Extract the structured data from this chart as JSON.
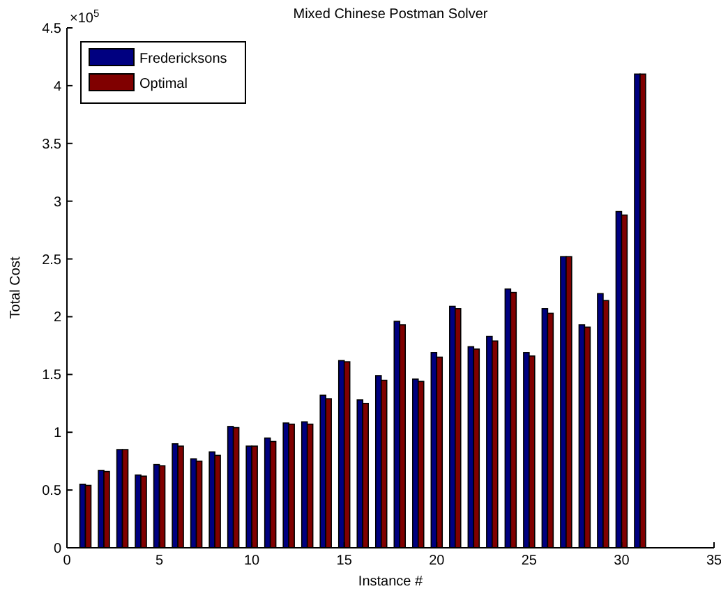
{
  "chart_data": {
    "type": "bar",
    "title": "Mixed Chinese Postman Solver",
    "xlabel": "Instance #",
    "ylabel": "Total Cost",
    "annotations": [
      "×10$^{5}$"
    ],
    "x": [
      1,
      2,
      3,
      4,
      5,
      6,
      7,
      8,
      9,
      10,
      11,
      12,
      13,
      14,
      15,
      16,
      17,
      18,
      19,
      20,
      21,
      22,
      23,
      24,
      25,
      26,
      27,
      28,
      29,
      30,
      31
    ],
    "series": [
      {
        "name": "Fredericksons",
        "color": "#000080",
        "values": [
          0.55,
          0.67,
          0.85,
          0.63,
          0.72,
          0.9,
          0.77,
          0.83,
          1.05,
          0.88,
          0.95,
          1.08,
          1.09,
          1.32,
          1.62,
          1.28,
          1.49,
          1.96,
          1.46,
          1.69,
          2.09,
          1.74,
          1.83,
          2.24,
          1.69,
          2.07,
          2.52,
          1.93,
          2.2,
          2.91,
          4.1
        ]
      },
      {
        "name": "Optimal",
        "color": "#800000",
        "values": [
          0.54,
          0.66,
          0.85,
          0.62,
          0.71,
          0.88,
          0.75,
          0.8,
          1.04,
          0.88,
          0.92,
          1.07,
          1.07,
          1.29,
          1.61,
          1.25,
          1.45,
          1.93,
          1.44,
          1.65,
          2.07,
          1.72,
          1.79,
          2.21,
          1.66,
          2.03,
          2.52,
          1.91,
          2.14,
          2.88,
          4.1
        ]
      }
    ],
    "xlim": [
      0,
      35
    ],
    "xticks": [
      0,
      5,
      10,
      15,
      20,
      25,
      30,
      35
    ],
    "ylim": [
      0,
      4.5
    ],
    "yticks": [
      0,
      0.5,
      1,
      1.5,
      2,
      2.5,
      3,
      3.5,
      4,
      4.5
    ],
    "legend": "top left"
  }
}
